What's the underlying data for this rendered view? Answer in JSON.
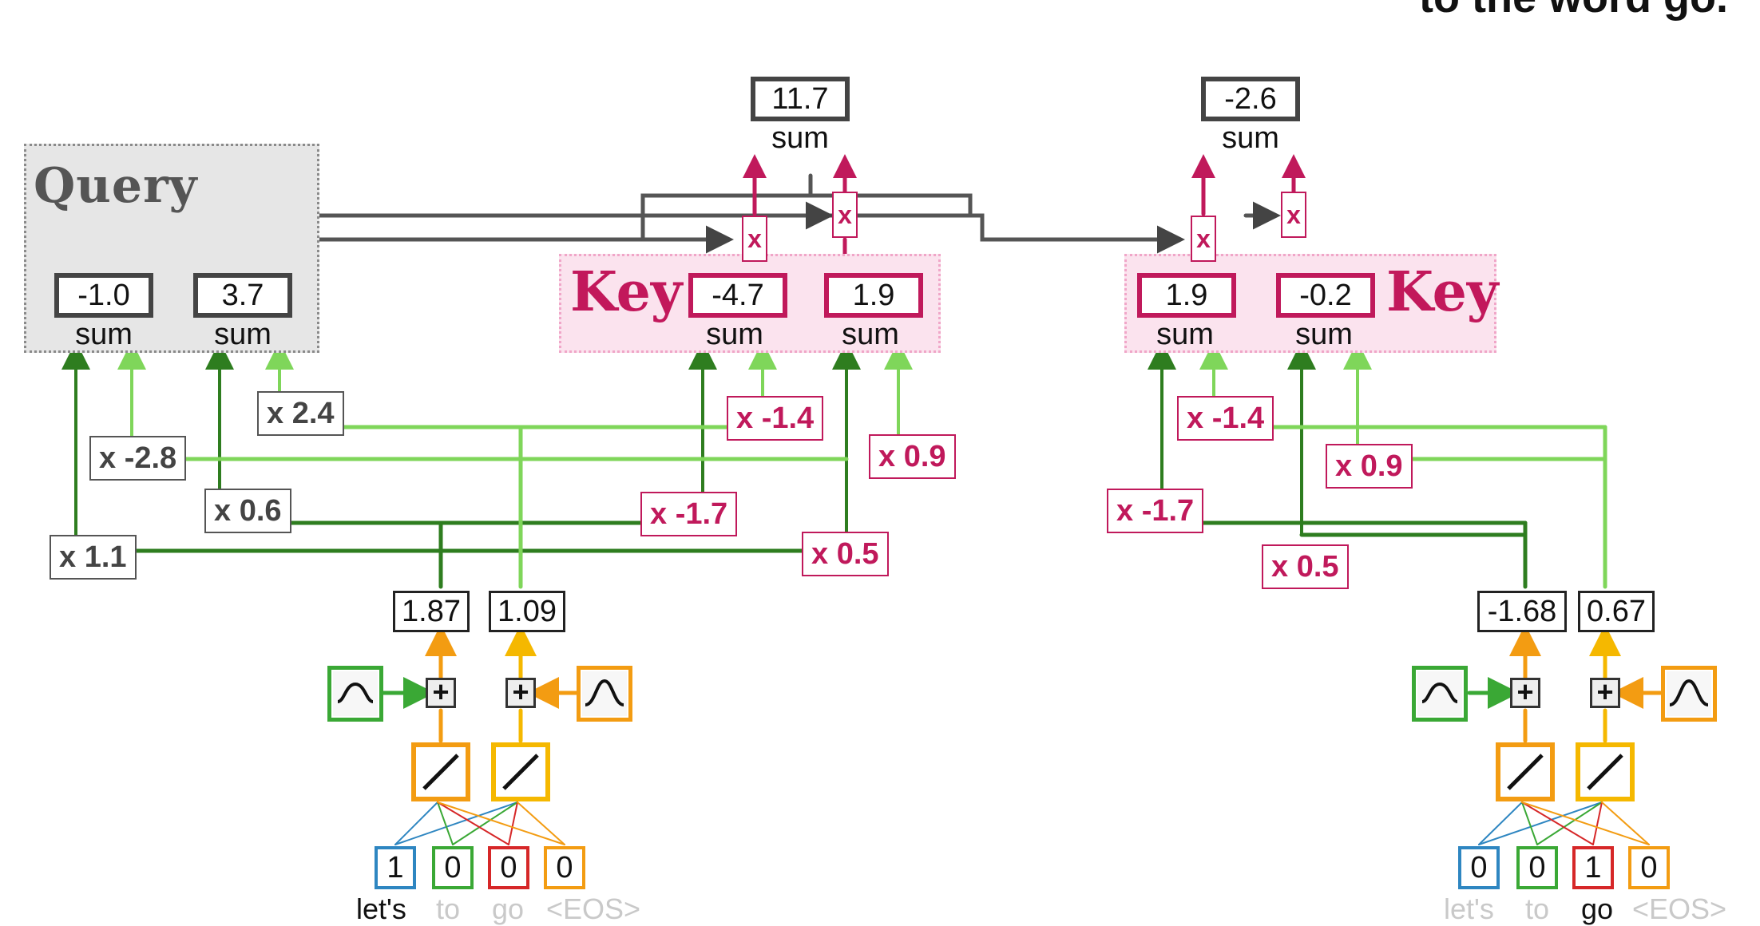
{
  "header_fragment": "to the word go.",
  "query": {
    "title": "Query",
    "values": [
      "-1.0",
      "3.7"
    ],
    "sum_label": "sum",
    "weights": [
      "x 1.1",
      "x -2.8",
      "x 0.6",
      "x 2.4"
    ]
  },
  "key_lets": {
    "title": "Key",
    "values": [
      "-4.7",
      "1.9"
    ],
    "sum_label": "sum",
    "weights": [
      "x -1.4",
      "x -1.7",
      "x 0.5",
      "x 0.9"
    ]
  },
  "key_go": {
    "title": "Key",
    "values": [
      "1.9",
      "-0.2"
    ],
    "sum_label": "sum",
    "weights": [
      "x -1.4",
      "x -1.7",
      "x 0.5",
      "x 0.9"
    ]
  },
  "results": {
    "lets": {
      "value": "11.7",
      "sum_label": "sum"
    },
    "go": {
      "value": "-2.6",
      "sum_label": "sum"
    }
  },
  "multiply_symbol": "x",
  "plus_symbol": "+",
  "embedding_lets": {
    "values": [
      "1.87",
      "1.09"
    ],
    "one_hot": [
      "1",
      "0",
      "0",
      "0"
    ]
  },
  "embedding_go": {
    "values": [
      "-1.68",
      "0.67"
    ],
    "one_hot": [
      "0",
      "0",
      "1",
      "0"
    ]
  },
  "vocab": [
    "let's",
    "to",
    "go",
    "<EOS>"
  ],
  "colors": {
    "pink": "#c0195b",
    "key_bg": "#fbe3ee",
    "query_bg": "#e6e6e6",
    "light_green": "#7fd65a",
    "dark_green": "#2e7d1f",
    "orange": "#f39c12",
    "yellow": "#f5b800",
    "blue": "#2e86c1",
    "green_token": "#3aa835",
    "red_token": "#d62728"
  },
  "icons": [
    "sine-wave-icon",
    "cosine-wave-icon",
    "linear-activation-icon"
  ]
}
